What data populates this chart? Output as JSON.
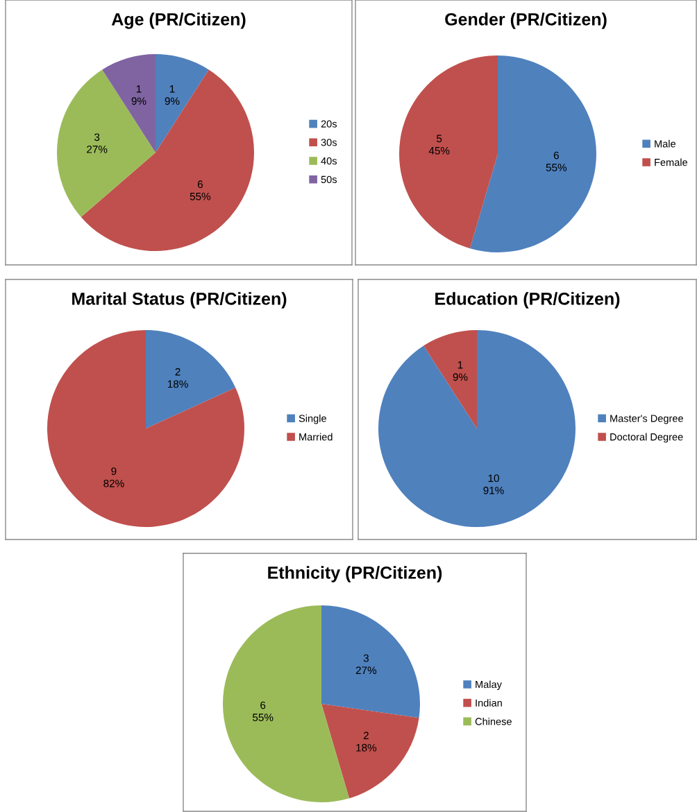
{
  "chart_data": [
    {
      "type": "pie",
      "title": "Age (PR/Citizen)",
      "categories": [
        "20s",
        "30s",
        "40s",
        "50s"
      ],
      "values": [
        1,
        6,
        3,
        1
      ],
      "colors": [
        "#4f81bd",
        "#c0504d",
        "#9bbb59",
        "#8064a2"
      ],
      "value_labels": [
        "1\n9%",
        "6\n55%",
        "3\n27%",
        "1\n9%"
      ],
      "legend": "right"
    },
    {
      "type": "pie",
      "title": "Gender (PR/Citizen)",
      "categories": [
        "Male",
        "Female"
      ],
      "values": [
        6,
        5
      ],
      "colors": [
        "#4f81bd",
        "#c0504d"
      ],
      "value_labels": [
        "6\n55%",
        "5\n45%"
      ],
      "legend": "right"
    },
    {
      "type": "pie",
      "title": "Marital Status (PR/Citizen)",
      "categories": [
        "Single",
        "Married"
      ],
      "values": [
        2,
        9
      ],
      "colors": [
        "#4f81bd",
        "#c0504d"
      ],
      "value_labels": [
        "2\n18%",
        "9\n82%"
      ],
      "legend": "right"
    },
    {
      "type": "pie",
      "title": "Education (PR/Citizen)",
      "categories": [
        "Master's Degree",
        "Doctoral Degree"
      ],
      "values": [
        10,
        1
      ],
      "colors": [
        "#4f81bd",
        "#c0504d"
      ],
      "value_labels": [
        "10\n91%",
        "1\n9%"
      ],
      "legend": "right"
    },
    {
      "type": "pie",
      "title": "Ethnicity (PR/Citizen)",
      "categories": [
        "Malay",
        "Indian",
        "Chinese"
      ],
      "values": [
        3,
        2,
        6
      ],
      "colors": [
        "#4f81bd",
        "#c0504d",
        "#9bbb59"
      ],
      "value_labels": [
        "3\n27%",
        "2\n18%",
        "6\n55%"
      ],
      "legend": "right"
    }
  ]
}
